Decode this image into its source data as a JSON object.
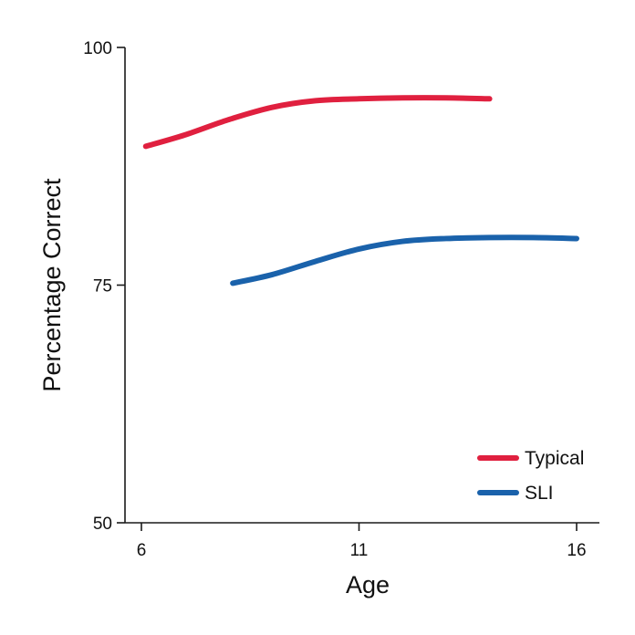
{
  "chart_data": {
    "type": "line",
    "title": "",
    "xlabel": "Age",
    "ylabel": "Percentage Correct",
    "xlim": [
      5.7,
      16.5
    ],
    "ylim": [
      50,
      100
    ],
    "xticks": [
      6,
      11,
      16
    ],
    "yticks": [
      50,
      75,
      100
    ],
    "xtick_labels": [
      "6",
      "11",
      "16"
    ],
    "ytick_labels": [
      "50",
      "75",
      "100"
    ],
    "grid": false,
    "legend_position": "bottom-right",
    "series": [
      {
        "name": "Typical",
        "color": "#e0203f",
        "x": [
          6.1,
          7,
          8,
          9,
          10,
          11,
          12,
          13,
          14
        ],
        "y": [
          89.6,
          90.8,
          92.4,
          93.7,
          94.4,
          94.6,
          94.7,
          94.7,
          94.6
        ]
      },
      {
        "name": "SLI",
        "color": "#1a62ab",
        "x": [
          8.1,
          9,
          10,
          11,
          12,
          13,
          14,
          15,
          16
        ],
        "y": [
          75.2,
          76.1,
          77.5,
          78.8,
          79.6,
          79.9,
          80.0,
          80.0,
          79.9
        ]
      }
    ]
  }
}
